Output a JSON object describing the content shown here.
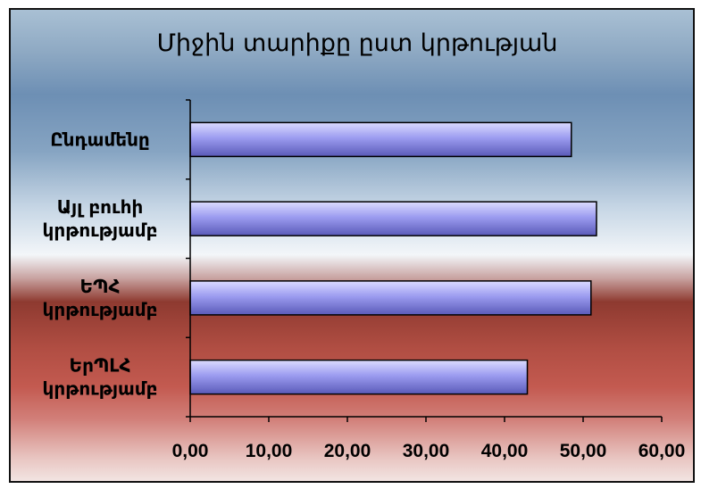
{
  "chart_data": {
    "type": "bar",
    "orientation": "horizontal",
    "title": "Միջին տարիքը ըստ կրթության",
    "categories": [
      [
        "Ընդամենը"
      ],
      [
        "Այլ բուհի",
        "կրթությամբ"
      ],
      [
        "ԵՊՀ",
        "կրթությամբ"
      ],
      [
        "ԵրՊԼՀ",
        "կրթությամբ"
      ]
    ],
    "values": [
      48.5,
      51.7,
      51.0,
      42.9
    ],
    "xlim": [
      0,
      60
    ],
    "xticks": [
      "0,00",
      "10,00",
      "20,00",
      "30,00",
      "40,00",
      "50,00",
      "60,00"
    ],
    "xlabel": "",
    "ylabel": "",
    "grid": false,
    "legend": "none",
    "colors": {
      "bar_top": "#dcdcff",
      "bar_mid": "#9c9cf0",
      "bar_bottom": "#5a5ab8",
      "bar_edge": "#000000",
      "axis": "#000000"
    }
  }
}
